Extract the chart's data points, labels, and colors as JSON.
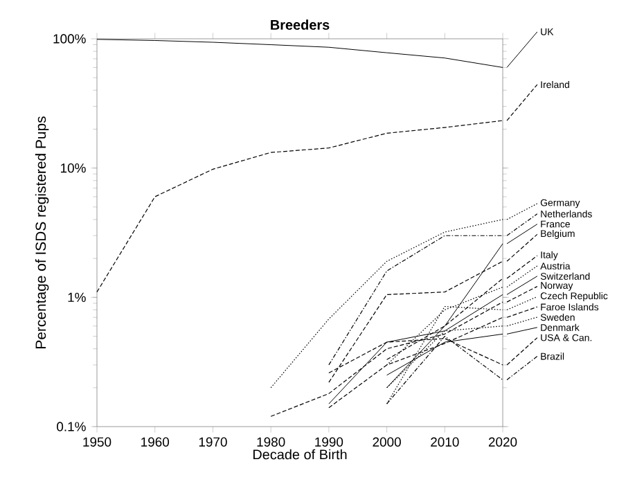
{
  "chart_data": {
    "type": "line",
    "title": "Breeders",
    "xlabel": "Decade of Birth",
    "ylabel": "Percentage of ISDS registered Pups",
    "x": [
      1950,
      1960,
      1970,
      1980,
      1990,
      2000,
      2010,
      2020
    ],
    "log": "y",
    "xlim": [
      1950,
      2020
    ],
    "ylim": [
      0.1,
      100
    ],
    "xticks": [
      1950,
      1960,
      1970,
      1980,
      1990,
      2000,
      2010,
      2020
    ],
    "yticks": [
      {
        "value": 0.1,
        "label": "0.1%"
      },
      {
        "value": 1,
        "label": "1%"
      },
      {
        "value": 10,
        "label": "10%"
      },
      {
        "value": 100,
        "label": "100%"
      }
    ],
    "grid": false,
    "legend": "right",
    "series": [
      {
        "name": "UK",
        "color": "#000000",
        "line_style": "solid",
        "values": [
          99,
          97,
          94,
          90,
          86,
          78,
          71,
          60
        ]
      },
      {
        "name": "Ireland",
        "color": "#000000",
        "line_style": "dashed",
        "values": [
          1.1,
          6.0,
          9.8,
          13.2,
          14.3,
          18.6,
          20.6,
          23.3
        ]
      },
      {
        "name": "Germany",
        "color": "#000000",
        "line_style": "dotted",
        "values": [
          null,
          null,
          null,
          0.2,
          0.68,
          1.9,
          3.2,
          4.0
        ]
      },
      {
        "name": "Netherlands",
        "color": "#000000",
        "line_style": "dashdot",
        "values": [
          null,
          null,
          null,
          null,
          0.3,
          1.6,
          3.0,
          3.0
        ]
      },
      {
        "name": "France",
        "color": "#000000",
        "line_style": "solid",
        "values": [
          null,
          null,
          null,
          null,
          null,
          0.2,
          0.6,
          2.6
        ]
      },
      {
        "name": "Belgium",
        "color": "#000000",
        "line_style": "dashed",
        "values": [
          null,
          null,
          null,
          null,
          0.22,
          1.05,
          1.1,
          1.9
        ]
      },
      {
        "name": "Italy",
        "color": "#000000",
        "line_style": "dashed",
        "values": [
          null,
          null,
          null,
          null,
          null,
          0.33,
          0.6,
          1.4
        ]
      },
      {
        "name": "Austria",
        "color": "#000000",
        "line_style": "dotted",
        "values": [
          null,
          null,
          null,
          null,
          null,
          0.3,
          0.8,
          1.2
        ]
      },
      {
        "name": "Switzerland",
        "color": "#000000",
        "line_style": "solid",
        "values": [
          null,
          null,
          null,
          null,
          0.15,
          0.45,
          0.55,
          1.05
        ]
      },
      {
        "name": "Norway",
        "color": "#000000",
        "line_style": "dashed",
        "values": [
          null,
          null,
          null,
          0.12,
          0.18,
          0.4,
          0.52,
          0.92
        ]
      },
      {
        "name": "Czech Republic",
        "color": "#000000",
        "line_style": "dotted",
        "values": [
          null,
          null,
          null,
          null,
          null,
          0.15,
          0.85,
          0.8
        ]
      },
      {
        "name": "Faroe Islands",
        "color": "#000000",
        "line_style": "dashed",
        "values": [
          null,
          null,
          null,
          null,
          0.14,
          0.3,
          0.44,
          0.7
        ]
      },
      {
        "name": "Sweden",
        "color": "#000000",
        "line_style": "dotted",
        "values": [
          null,
          null,
          null,
          null,
          null,
          0.2,
          0.55,
          0.6
        ]
      },
      {
        "name": "Denmark",
        "color": "#000000",
        "line_style": "solid",
        "values": [
          null,
          null,
          null,
          null,
          null,
          0.25,
          0.45,
          0.52
        ]
      },
      {
        "name": "USA & Can.",
        "color": "#000000",
        "line_style": "dashed",
        "values": [
          null,
          null,
          null,
          null,
          0.26,
          0.45,
          0.48,
          0.3
        ]
      },
      {
        "name": "Brazil",
        "color": "#000000",
        "line_style": "dashdot",
        "values": [
          null,
          null,
          null,
          null,
          null,
          0.15,
          0.5,
          0.23
        ]
      }
    ]
  }
}
